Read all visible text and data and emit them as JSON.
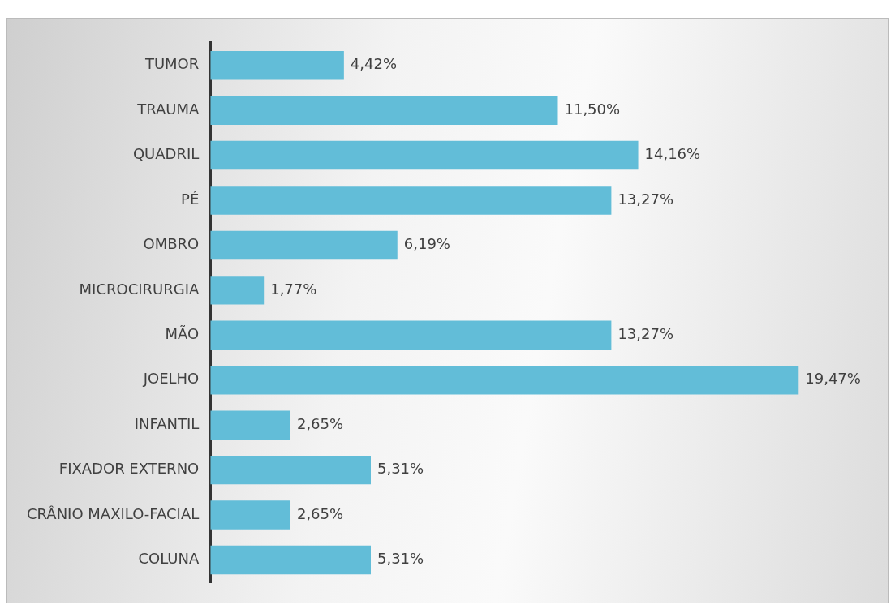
{
  "chart_data": {
    "type": "bar",
    "orientation": "horizontal",
    "categories": [
      "TUMOR",
      "TRAUMA",
      "QUADRIL",
      "PÉ",
      "OMBRO",
      "MICROCIRURGIA",
      "MÃO",
      "JOELHO",
      "INFANTIL",
      "FIXADOR EXTERNO",
      "CRÂNIO MAXILO-FACIAL",
      "COLUNA"
    ],
    "values": [
      4.42,
      11.5,
      14.16,
      13.27,
      6.19,
      1.77,
      13.27,
      19.47,
      2.65,
      5.31,
      2.65,
      5.31
    ],
    "value_labels": [
      "4,42%",
      "11,50%",
      "14,16%",
      "13,27%",
      "6,19%",
      "1,77%",
      "13,27%",
      "19,47%",
      "2,65%",
      "5,31%",
      "2,65%",
      "5,31%"
    ],
    "color": "#62bdd8",
    "legend": false,
    "tick_labels": "y"
  }
}
